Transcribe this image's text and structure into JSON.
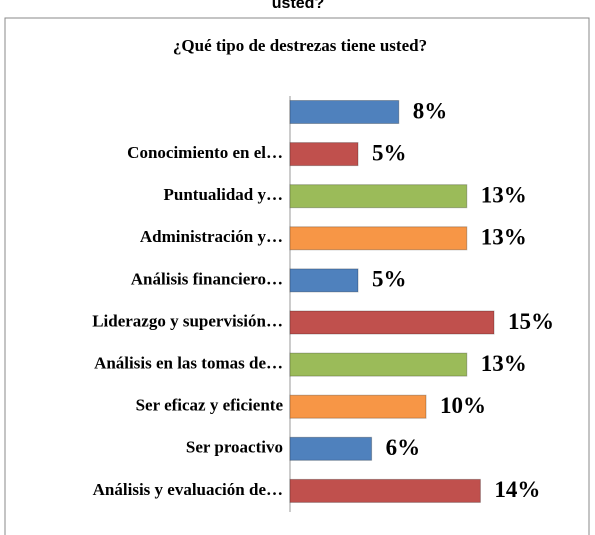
{
  "header_text": "usted?",
  "chart_data": {
    "type": "bar",
    "orientation": "horizontal",
    "title": "¿Qué tipo de destrezas tiene usted?",
    "categories": [
      null,
      "Conocimiento en el…",
      "Puntualidad y…",
      "Administración y…",
      "Análisis financiero…",
      "Liderazgo y supervisión…",
      "Análisis en las tomas de…",
      "Ser eficaz y eficiente",
      "Ser proactivo",
      "Análisis y evaluación de…"
    ],
    "values": [
      8,
      5,
      13,
      13,
      5,
      15,
      13,
      10,
      6,
      14
    ],
    "value_labels": [
      "8%",
      "5%",
      "13%",
      "13%",
      "5%",
      "15%",
      "13%",
      "10%",
      "6%",
      "14%"
    ],
    "colors": [
      "#4f81bd",
      "#c0504d",
      "#9bbb59",
      "#f79646",
      "#4f81bd",
      "#c0504d",
      "#9bbb59",
      "#f79646",
      "#4f81bd",
      "#c0504d"
    ]
  }
}
